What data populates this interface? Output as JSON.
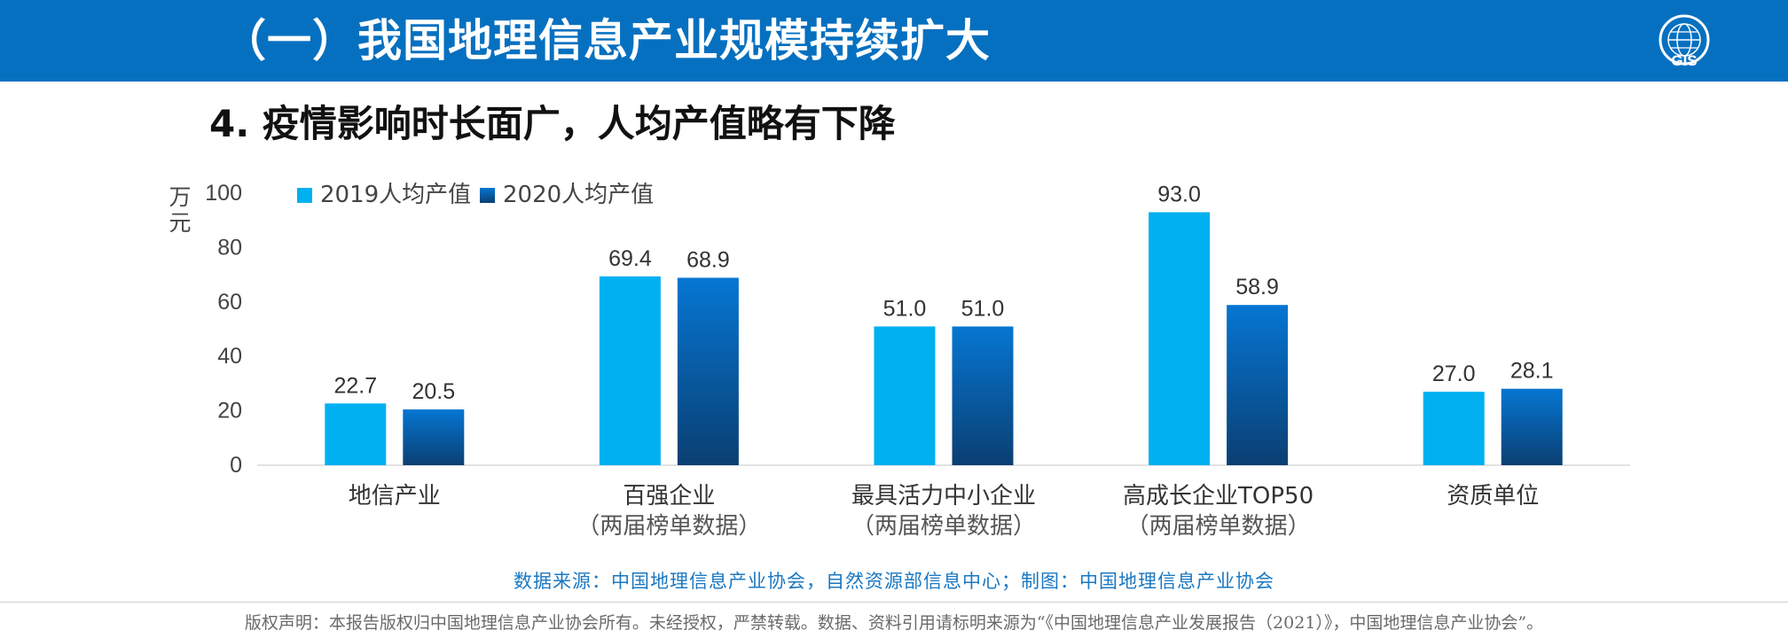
{
  "header": {
    "title": "（一）我国地理信息产业规模持续扩大"
  },
  "subtitle": "4. 疫情影响时长面广，人均产值略有下降",
  "logo": {
    "text": "GIS",
    "ring_text": "CHINA ASSOCIATION FOR GIS"
  },
  "chart_data": {
    "type": "bar",
    "categories": [
      [
        "地信产业"
      ],
      [
        "百强企业",
        "（两届榜单数据）"
      ],
      [
        "最具活力中小企业",
        "（两届榜单数据）"
      ],
      [
        "高成长企业TOP50",
        "（两届榜单数据）"
      ],
      [
        "资质单位"
      ]
    ],
    "series": [
      {
        "name": "2019人均产值",
        "values": [
          22.7,
          69.4,
          51.0,
          93.0,
          27.0
        ],
        "color": "#00b0f0",
        "labels": [
          "22.7",
          "69.4",
          "51.0",
          "93.0",
          "27.0"
        ]
      },
      {
        "name": "2020人均产值",
        "values": [
          20.5,
          68.9,
          51.0,
          58.9,
          28.1
        ],
        "color_top": "#0676d2",
        "color_bottom": "#0a3f72",
        "labels": [
          "20.5",
          "68.9",
          "51.0",
          "58.9",
          "28.1"
        ]
      }
    ],
    "ylabel": "万元",
    "ylim": [
      0,
      100
    ],
    "yticks": [
      "0",
      "20",
      "40",
      "60",
      "80",
      "100"
    ],
    "grid": false,
    "legend": "top-left"
  },
  "source": "数据来源：中国地理信息产业协会，自然资源部信息中心；制图：中国地理信息产业协会",
  "copyright": "版权声明：本报告版权归中国地理信息产业协会所有。未经授权，严禁转载。数据、资料引用请标明来源为“《中国地理信息产业发展报告（2021）》，中国地理信息产业协会”。"
}
